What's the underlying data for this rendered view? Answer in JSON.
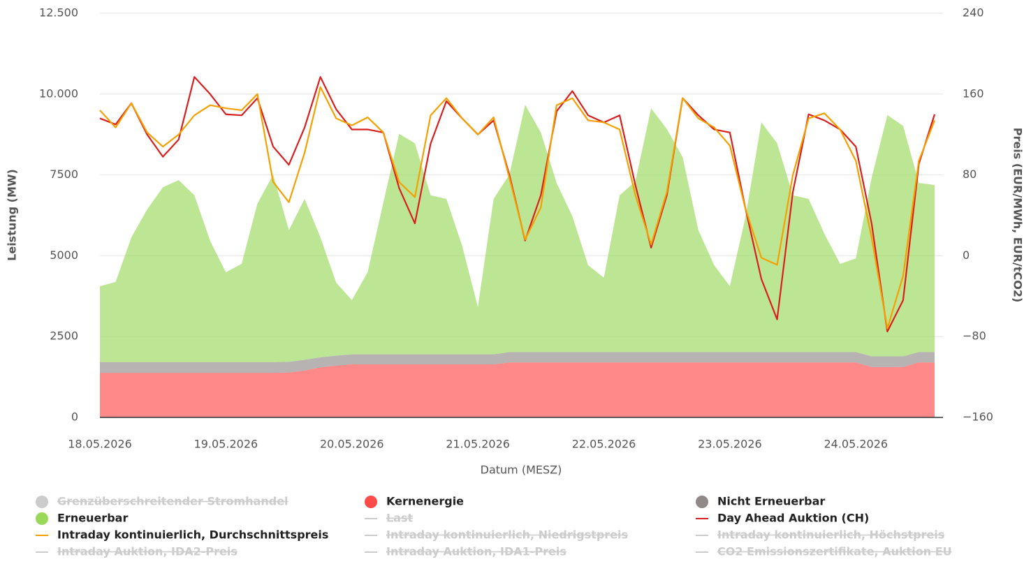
{
  "chart_data": {
    "type": "area",
    "xlabel": "Datum (MESZ)",
    "ylabel": "Leistung (MW)",
    "y2label": "Preis (EUR/MWh, EUR/tCO2)",
    "x": [
      0,
      3,
      6,
      9,
      12,
      15,
      18,
      21,
      24,
      27,
      30,
      33,
      36,
      39,
      42,
      45,
      48,
      51,
      54,
      57,
      60,
      63,
      66,
      69,
      72,
      75,
      78,
      81,
      84,
      87,
      90,
      93,
      96,
      99,
      102,
      105,
      108,
      111,
      114,
      117,
      120,
      123,
      126,
      129,
      132,
      135,
      138,
      141,
      144,
      147,
      150,
      153,
      156,
      159
    ],
    "xlim": [
      0,
      159
    ],
    "xticks": [
      {
        "value": 0,
        "label": "18.05.2026"
      },
      {
        "value": 24,
        "label": "19.05.2026"
      },
      {
        "value": 48,
        "label": "20.05.2026"
      },
      {
        "value": 72,
        "label": "21.05.2026"
      },
      {
        "value": 96,
        "label": "22.05.2026"
      },
      {
        "value": 120,
        "label": "23.05.2026"
      },
      {
        "value": 144,
        "label": "24.05.2026"
      }
    ],
    "ylim": [
      0,
      12500
    ],
    "yticks": [
      0,
      2500,
      5000,
      7500,
      {
        "value": 10000,
        "label": "10.000"
      },
      {
        "value": 12500,
        "label": "12.500"
      }
    ],
    "y2lim": [
      -160,
      240
    ],
    "y2ticks": [
      {
        "value": -160,
        "label": "−160"
      },
      {
        "value": -80,
        "label": "−80"
      },
      0,
      80,
      160,
      240
    ],
    "grid": true,
    "stacked": true,
    "series": [
      {
        "name": "Grenzüberschreitender Stromhandel",
        "type": "area",
        "color": "#aaaaaa",
        "visible": false
      },
      {
        "name": "Kernenergie",
        "type": "area",
        "color": "#ff4a4a",
        "values": [
          1380,
          1380,
          1380,
          1380,
          1380,
          1380,
          1380,
          1380,
          1380,
          1380,
          1380,
          1380,
          1390,
          1450,
          1550,
          1600,
          1640,
          1640,
          1640,
          1640,
          1640,
          1640,
          1640,
          1640,
          1640,
          1640,
          1700,
          1700,
          1700,
          1700,
          1700,
          1700,
          1700,
          1700,
          1700,
          1700,
          1700,
          1700,
          1700,
          1700,
          1700,
          1700,
          1700,
          1700,
          1700,
          1700,
          1700,
          1700,
          1700,
          1560,
          1560,
          1560,
          1700,
          1700
        ]
      },
      {
        "name": "Nicht Erneuerbar",
        "type": "area",
        "color": "#8f8a88",
        "values": [
          330,
          330,
          330,
          330,
          330,
          330,
          330,
          330,
          330,
          330,
          330,
          330,
          330,
          330,
          310,
          310,
          310,
          310,
          310,
          310,
          310,
          310,
          310,
          310,
          310,
          310,
          320,
          320,
          320,
          320,
          320,
          320,
          320,
          320,
          320,
          320,
          320,
          320,
          320,
          320,
          320,
          320,
          320,
          320,
          320,
          320,
          320,
          320,
          320,
          330,
          330,
          330,
          320,
          320
        ]
      },
      {
        "name": "Erneuerbar",
        "type": "area",
        "color": "#9ad85a",
        "values": [
          2350,
          2480,
          3860,
          4720,
          5410,
          5630,
          5160,
          3750,
          2780,
          3040,
          4900,
          5800,
          4070,
          4980,
          3710,
          2260,
          1680,
          2540,
          4700,
          6820,
          6530,
          4920,
          4810,
          3360,
          1460,
          4810,
          5490,
          7650,
          6790,
          5230,
          4200,
          2690,
          2300,
          4850,
          5280,
          7540,
          6900,
          6030,
          3770,
          2690,
          2040,
          4200,
          7110,
          6460,
          4850,
          4740,
          3660,
          2730,
          2900,
          5520,
          7460,
          7130,
          5230,
          5170
        ]
      },
      {
        "name": "Last",
        "type": "line",
        "axis": "y1",
        "color": "#aaaaaa",
        "visible": false
      },
      {
        "name": "Day Ahead Auktion (CH)",
        "type": "line",
        "axis": "y2",
        "color": "#d91e1e",
        "values": [
          136,
          130,
          151,
          120,
          98,
          115,
          177,
          160,
          140,
          139,
          156,
          108,
          90,
          127,
          177,
          145,
          125,
          125,
          122,
          67,
          32,
          111,
          153,
          136,
          120,
          134,
          80,
          15,
          60,
          143,
          163,
          139,
          132,
          139,
          70,
          8,
          60,
          156,
          139,
          125,
          122,
          46,
          -23,
          -63,
          63,
          140,
          134,
          125,
          108,
          32,
          -75,
          -44,
          91,
          140
        ]
      },
      {
        "name": "Intraday kontinuierlich, Durchschnittspreis",
        "type": "line",
        "axis": "y2",
        "color": "#f5a000",
        "values": [
          144,
          127,
          151,
          122,
          108,
          120,
          139,
          149,
          146,
          144,
          160,
          73,
          53,
          102,
          167,
          136,
          129,
          137,
          122,
          73,
          58,
          139,
          156,
          136,
          120,
          137,
          77,
          16,
          48,
          149,
          156,
          134,
          132,
          125,
          60,
          11,
          63,
          156,
          136,
          127,
          109,
          46,
          -2,
          -9,
          80,
          136,
          141,
          125,
          94,
          18,
          -72,
          -20,
          94,
          134
        ]
      },
      {
        "name": "Intraday kontinuierlich, Niedrigstpreis",
        "type": "line",
        "axis": "y2",
        "color": "#aaaaaa",
        "visible": false
      },
      {
        "name": "Intraday kontinuierlich, Höchstpreis",
        "type": "line",
        "axis": "y2",
        "color": "#aaaaaa",
        "visible": false
      },
      {
        "name": "Intraday Auktion, IDA2-Preis",
        "type": "line",
        "axis": "y2",
        "color": "#aaaaaa",
        "visible": false
      },
      {
        "name": "Intraday Auktion, IDA1-Preis",
        "type": "line",
        "axis": "y2",
        "color": "#aaaaaa",
        "visible": false
      },
      {
        "name": "CO2 Emissionszertifikate, Auktion EU",
        "type": "line",
        "axis": "y2",
        "color": "#aaaaaa",
        "visible": false
      }
    ]
  }
}
